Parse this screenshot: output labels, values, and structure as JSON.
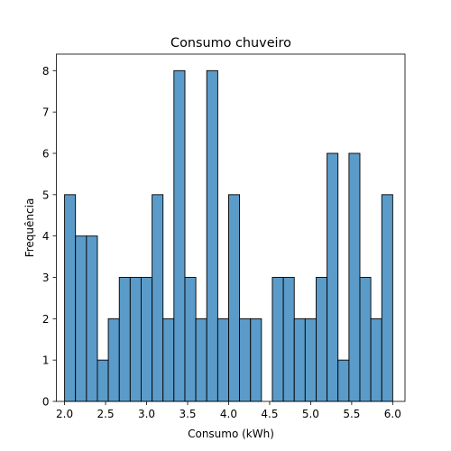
{
  "chart_data": {
    "type": "bar",
    "subtype": "histogram",
    "title": "Consumo chuveiro",
    "xlabel": "Consumo (kWh)",
    "ylabel": "Frequência",
    "xlim": [
      1.9,
      6.15
    ],
    "ylim": [
      0,
      8.4
    ],
    "xticks": [
      2.0,
      2.5,
      3.0,
      3.5,
      4.0,
      4.5,
      5.0,
      5.5,
      6.0
    ],
    "xtick_labels": [
      "2.0",
      "2.5",
      "3.0",
      "3.5",
      "4.0",
      "4.5",
      "5.0",
      "5.5",
      "6.0"
    ],
    "yticks": [
      0,
      1,
      2,
      3,
      4,
      5,
      6,
      7,
      8
    ],
    "ytick_labels": [
      "0",
      "1",
      "2",
      "3",
      "4",
      "5",
      "6",
      "7",
      "8"
    ],
    "bin_edges": [
      2.0,
      2.133,
      2.267,
      2.4,
      2.533,
      2.667,
      2.8,
      2.933,
      3.067,
      3.2,
      3.333,
      3.467,
      3.6,
      3.733,
      3.867,
      4.0,
      4.133,
      4.267,
      4.4,
      4.533,
      4.667,
      4.8,
      4.933,
      5.067,
      5.2,
      5.333,
      5.467,
      5.6,
      5.733,
      5.867,
      6.0
    ],
    "values": [
      5,
      4,
      4,
      1,
      2,
      3,
      3,
      3,
      5,
      2,
      8,
      3,
      2,
      8,
      2,
      5,
      2,
      2,
      0,
      3,
      3,
      2,
      2,
      3,
      6,
      1,
      6,
      3,
      2,
      5
    ],
    "bar_color": "#5b9bc9",
    "edge_color": "#000000",
    "grid": false
  }
}
